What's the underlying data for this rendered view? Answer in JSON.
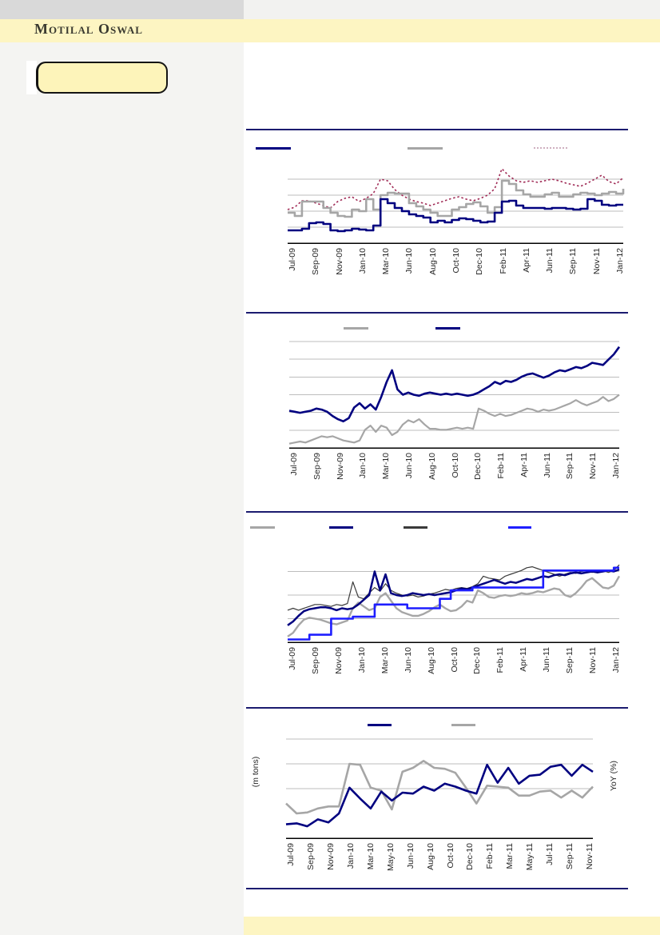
{
  "brand": {
    "logo_text": "Motilal Oswal"
  },
  "theme": {
    "page_bg": "#ffffff",
    "sidebar_bg": "#f4f4f2",
    "top_left_block_bg": "#d9d9d9",
    "top_right_strip_bg": "#f2f2f0",
    "brand_band_bg": "#fdf5c2",
    "ticker_box_bg": "#fdf4ba",
    "separator_color": "#1b1b6f",
    "gridline_color": "#bdbdbd",
    "axis_color": "#000000",
    "label_color": "#262626",
    "footer_band_bg": "#fdf5c2"
  },
  "chart_data": [
    {
      "type": "line",
      "title": "",
      "legend_position": "top",
      "grid": true,
      "y_axis": {
        "tick_labels_visible": false
      },
      "value_scale": "percent of plot height (0=bottom, 100=top); y-axis tick labels are not visible in the source image",
      "x_categories": [
        "Jul-09",
        "Sep-09",
        "Nov-09",
        "Jan-10",
        "Mar-10",
        "Jun-10",
        "Aug-10",
        "Oct-10",
        "Dec-10",
        "Feb-11",
        "Apr-11",
        "Jun-11",
        "Sep-11",
        "Nov-11",
        "Jan-12"
      ],
      "legend": [
        {
          "label": "",
          "key_color": "#000080",
          "style": "solid"
        },
        {
          "label": "",
          "key_color": "#a6a6a6",
          "style": "solid"
        },
        {
          "label": "",
          "key_color": "#cfb0c0",
          "style": "dotted"
        }
      ],
      "series": [
        {
          "name": "dotted-crimson-line",
          "color": "#a02b56",
          "style": "dotted",
          "width": 1.6,
          "step": false,
          "values": [
            42,
            45,
            53,
            53,
            50,
            47,
            44,
            52,
            56,
            58,
            52,
            56,
            62,
            80,
            78,
            67,
            60,
            55,
            52,
            50,
            47,
            50,
            53,
            56,
            58,
            55,
            53,
            56,
            60,
            68,
            93,
            84,
            78,
            76,
            78,
            76,
            78,
            80,
            78,
            75,
            73,
            71,
            75,
            80,
            85,
            77,
            74,
            82
          ]
        },
        {
          "name": "gray-line",
          "color": "#a6a6a6",
          "style": "solid",
          "width": 2.6,
          "step": true,
          "values": [
            38,
            34,
            52,
            52,
            52,
            44,
            38,
            34,
            33,
            42,
            40,
            55,
            42,
            60,
            63,
            62,
            62,
            50,
            46,
            42,
            38,
            34,
            34,
            42,
            45,
            49,
            51,
            46,
            38,
            45,
            78,
            74,
            66,
            61,
            58,
            58,
            61,
            63,
            58,
            58,
            61,
            63,
            62,
            60,
            62,
            64,
            62,
            68
          ]
        },
        {
          "name": "navy-line",
          "color": "#000080",
          "style": "solid",
          "width": 2.6,
          "step": true,
          "values": [
            16,
            16,
            18,
            25,
            26,
            24,
            16,
            15,
            16,
            18,
            17,
            16,
            22,
            55,
            50,
            44,
            40,
            36,
            34,
            32,
            26,
            28,
            26,
            29,
            31,
            30,
            28,
            26,
            27,
            38,
            52,
            53,
            47,
            44,
            44,
            44,
            43,
            44,
            44,
            43,
            42,
            43,
            55,
            53,
            48,
            47,
            48,
            48
          ]
        }
      ]
    },
    {
      "type": "line",
      "title": "",
      "legend_position": "top",
      "grid": true,
      "y_axis": {
        "tick_labels_visible": false
      },
      "value_scale": "percent of plot height (0=bottom, 100=top); y-axis tick labels are not visible in the source image",
      "x_categories": [
        "Jul-09",
        "Sep-09",
        "Nov-09",
        "Jan-10",
        "Mar-10",
        "Jun-10",
        "Aug-10",
        "Oct-10",
        "Dec-10",
        "Feb-11",
        "Apr-11",
        "Jun-11",
        "Sep-11",
        "Nov-11",
        "Jan-12"
      ],
      "legend": [
        {
          "label": "",
          "key_color": "#a6a6a6",
          "style": "solid"
        },
        {
          "label": "",
          "key_color": "#000080",
          "style": "solid"
        }
      ],
      "series": [
        {
          "name": "gray-line",
          "color": "#a6a6a6",
          "style": "solid",
          "width": 2.2,
          "step": false,
          "values": [
            4,
            5,
            6,
            5,
            7,
            9,
            11,
            10,
            11,
            9,
            7,
            6,
            5,
            7,
            17,
            21,
            15,
            21,
            19,
            12,
            15,
            22,
            26,
            24,
            27,
            22,
            18,
            18,
            17,
            17,
            18,
            19,
            18,
            19,
            18,
            37,
            35,
            32,
            30,
            32,
            30,
            31,
            33,
            35,
            37,
            36,
            34,
            36,
            35,
            36,
            38,
            40,
            42,
            45,
            42,
            40,
            42,
            44,
            48,
            44,
            46,
            50
          ]
        },
        {
          "name": "navy-line",
          "color": "#000080",
          "style": "solid",
          "width": 2.6,
          "step": false,
          "values": [
            35,
            34,
            33,
            34,
            35,
            37,
            36,
            34,
            30,
            27,
            25,
            28,
            38,
            42,
            37,
            41,
            36,
            48,
            62,
            73,
            55,
            50,
            52,
            50,
            49,
            51,
            52,
            51,
            50,
            51,
            50,
            51,
            50,
            49,
            50,
            52,
            55,
            58,
            62,
            60,
            63,
            62,
            64,
            67,
            69,
            70,
            68,
            66,
            68,
            71,
            73,
            72,
            74,
            76,
            75,
            77,
            80,
            79,
            78,
            83,
            88,
            95
          ]
        }
      ]
    },
    {
      "type": "line",
      "title": "",
      "legend_position": "top",
      "grid": true,
      "y_axis": {
        "tick_labels_visible": false
      },
      "value_scale": "percent of plot height (0=bottom, 100=top); y-axis tick labels are not visible in the source image",
      "x_categories": [
        "Jul-09",
        "Sep-09",
        "Nov-09",
        "Jan-10",
        "Mar-10",
        "Jun-10",
        "Aug-10",
        "Oct-10",
        "Dec-10",
        "Feb-11",
        "Apr-11",
        "Jun-11",
        "Sep-11",
        "Nov-11",
        "Jan-12"
      ],
      "legend": [
        {
          "label": "",
          "key_color": "#a6a6a6",
          "style": "solid"
        },
        {
          "label": "",
          "key_color": "#000080",
          "style": "solid"
        },
        {
          "label": "",
          "key_color": "#3a3a3a",
          "style": "solid"
        },
        {
          "label": "",
          "key_color": "#1e1eff",
          "style": "solid"
        }
      ],
      "series": [
        {
          "name": "gray-line",
          "color": "#a6a6a6",
          "style": "solid",
          "width": 2.4,
          "step": false,
          "values": [
            6,
            10,
            18,
            24,
            26,
            25,
            24,
            22,
            20,
            19,
            21,
            23,
            36,
            42,
            38,
            34,
            36,
            48,
            52,
            44,
            36,
            32,
            30,
            28,
            28,
            30,
            33,
            37,
            40,
            36,
            33,
            34,
            38,
            44,
            42,
            55,
            52,
            48,
            47,
            49,
            50,
            49,
            50,
            52,
            51,
            52,
            54,
            53,
            55,
            57,
            56,
            50,
            48,
            52,
            58,
            65,
            68,
            63,
            58,
            57,
            60,
            70
          ]
        },
        {
          "name": "thin-dark-line",
          "color": "#3a3a3a",
          "style": "solid",
          "width": 1.2,
          "step": false,
          "values": [
            34,
            36,
            34,
            36,
            38,
            40,
            40,
            39,
            38,
            40,
            39,
            41,
            64,
            48,
            46,
            52,
            58,
            54,
            62,
            55,
            52,
            50,
            49,
            50,
            48,
            49,
            51,
            52,
            54,
            56,
            55,
            57,
            58,
            57,
            59,
            62,
            70,
            68,
            67,
            66,
            70,
            72,
            74,
            76,
            79,
            80,
            78,
            76,
            74,
            72,
            70,
            72,
            74,
            73,
            75,
            76,
            74,
            75,
            76,
            74,
            76,
            82
          ]
        },
        {
          "name": "navy-line",
          "color": "#000080",
          "style": "solid",
          "width": 2.5,
          "step": false,
          "values": [
            18,
            22,
            28,
            33,
            35,
            36,
            37,
            37,
            36,
            34,
            36,
            35,
            36,
            40,
            45,
            50,
            75,
            55,
            72,
            52,
            50,
            49,
            50,
            52,
            51,
            50,
            51,
            50,
            51,
            52,
            53,
            55,
            57,
            56,
            58,
            60,
            62,
            64,
            66,
            64,
            62,
            64,
            63,
            65,
            67,
            66,
            68,
            70,
            69,
            71,
            72,
            71,
            73,
            74,
            73,
            74,
            75,
            74,
            75,
            76,
            75,
            77
          ]
        },
        {
          "name": "bright-blue-step-line",
          "color": "#1e1eff",
          "style": "solid",
          "width": 2.6,
          "step": true,
          "values": [
            3,
            3,
            3,
            3,
            8,
            8,
            8,
            8,
            25,
            25,
            25,
            25,
            27,
            27,
            27,
            27,
            40,
            40,
            40,
            40,
            40,
            40,
            36,
            36,
            36,
            36,
            36,
            36,
            46,
            46,
            55,
            55,
            55,
            55,
            58,
            58,
            58,
            58,
            58,
            58,
            58,
            58,
            58,
            58,
            58,
            58,
            58,
            76,
            76,
            76,
            76,
            76,
            76,
            76,
            76,
            76,
            76,
            76,
            76,
            76,
            79,
            79
          ]
        }
      ]
    },
    {
      "type": "line",
      "title": "",
      "legend_position": "top",
      "grid": true,
      "ylabel_left": "(m tons)",
      "ylabel_right": "YoY (%)",
      "y_axis": {
        "tick_labels_visible": false
      },
      "value_scale": "percent of plot height (0=bottom, 100=top); y-axis tick labels are not visible in the source image",
      "x_categories": [
        "Jul-09",
        "Sep-09",
        "Nov-09",
        "Jan-10",
        "Mar-10",
        "May-10",
        "Jun-10",
        "Aug-10",
        "Oct-10",
        "Dec-10",
        "Feb-11",
        "Mar-11",
        "May-11",
        "Jul-11",
        "Sep-11",
        "Nov-11"
      ],
      "legend": [
        {
          "label": "",
          "key_color": "#000080",
          "style": "solid"
        },
        {
          "label": "",
          "key_color": "#a6a6a6",
          "style": "solid"
        }
      ],
      "series": [
        {
          "name": "gray-yoy-line",
          "color": "#a6a6a6",
          "style": "solid",
          "width": 2.6,
          "step": false,
          "values": [
            35,
            25,
            26,
            30,
            32,
            32,
            75,
            74,
            51,
            48,
            29,
            67,
            71,
            78,
            71,
            70,
            66,
            51,
            35,
            53,
            52,
            51,
            43,
            43,
            47,
            48,
            41,
            48,
            41,
            52
          ]
        },
        {
          "name": "navy-mtons-line",
          "color": "#000080",
          "style": "solid",
          "width": 2.6,
          "step": false,
          "values": [
            14,
            15,
            12,
            19,
            16,
            25,
            51,
            40,
            30,
            47,
            38,
            46,
            45,
            52,
            48,
            55,
            52,
            48,
            45,
            74,
            56,
            71,
            55,
            63,
            64,
            72,
            74,
            63,
            74,
            67
          ]
        }
      ]
    }
  ]
}
